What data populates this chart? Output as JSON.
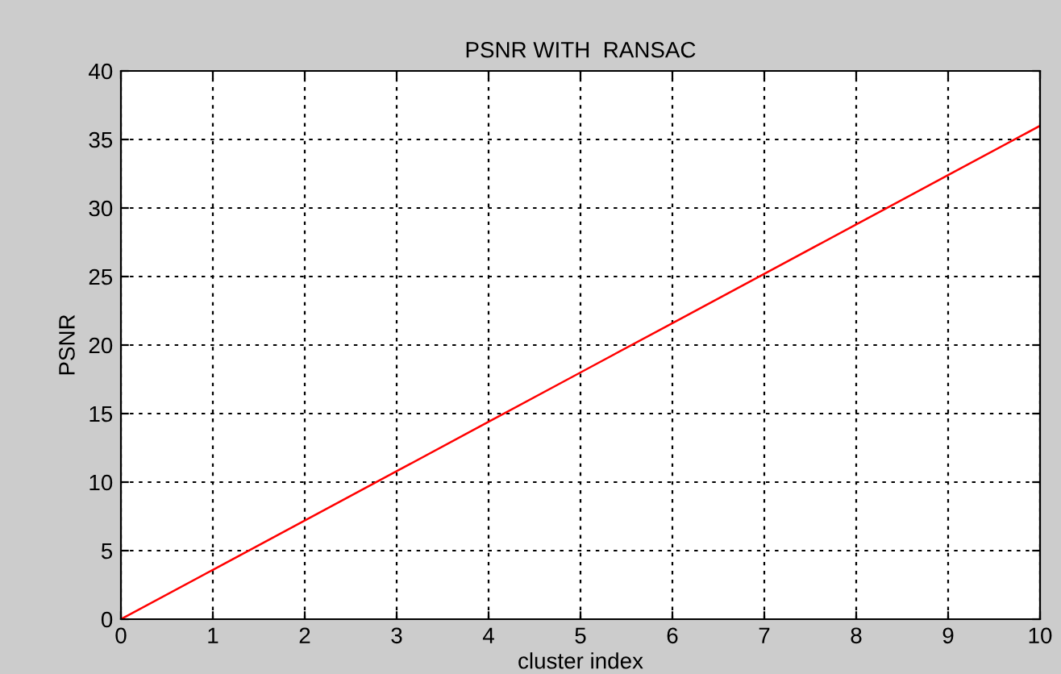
{
  "chart_data": {
    "type": "line",
    "title": "PSNR WITH  RANSAC",
    "xlabel": "cluster index",
    "ylabel": "PSNR",
    "x": [
      0,
      1,
      2,
      3,
      4,
      5,
      6,
      7,
      8,
      9,
      10
    ],
    "series": [
      {
        "color": "#ff0000",
        "values": [
          0,
          3.6,
          7.2,
          10.8,
          14.4,
          18,
          21.6,
          25.2,
          28.8,
          32.4,
          36
        ]
      }
    ],
    "xlim": [
      0,
      10
    ],
    "xticks": [
      0,
      1,
      2,
      3,
      4,
      5,
      6,
      7,
      8,
      9,
      10
    ],
    "ylim": [
      0,
      40
    ],
    "yticks": [
      0,
      5,
      10,
      15,
      20,
      25,
      30,
      35,
      40
    ],
    "grid": true,
    "line_style": "solid",
    "marker": "none",
    "legend": false
  }
}
